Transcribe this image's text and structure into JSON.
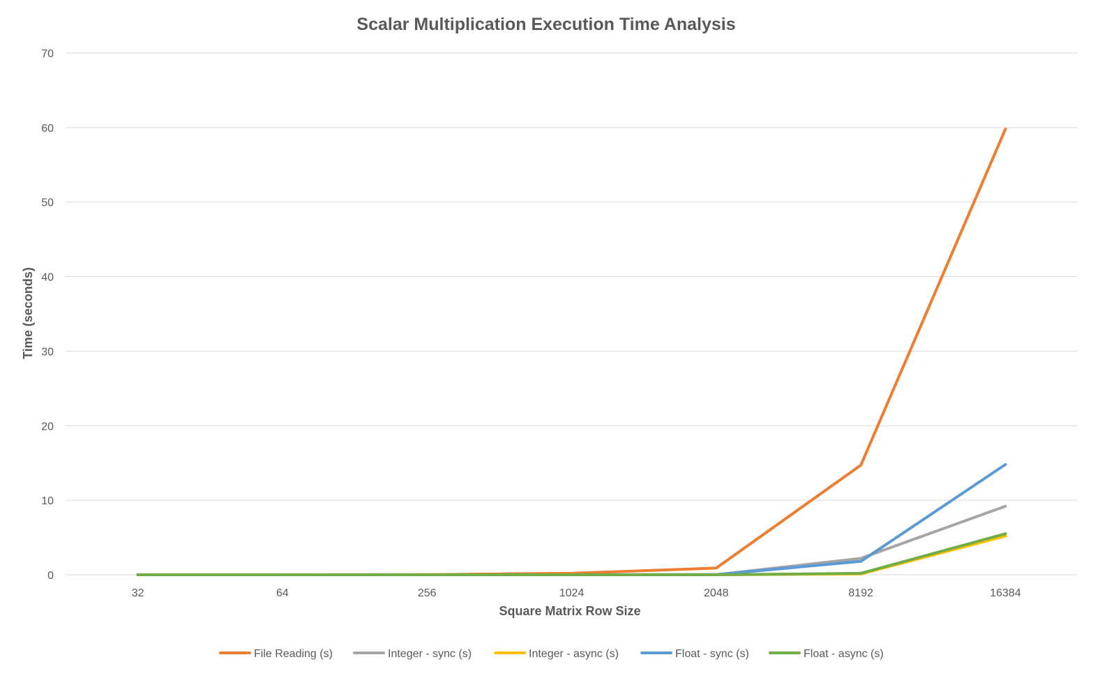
{
  "chart_data": {
    "type": "line",
    "title": "Scalar Multiplication Execution Time Analysis",
    "xlabel": "Square Matrix Row Size",
    "ylabel": "Time (seconds)",
    "categories": [
      "32",
      "64",
      "256",
      "1024",
      "2048",
      "8192",
      "16384"
    ],
    "y_ticks": [
      "0",
      "10",
      "20",
      "30",
      "40",
      "50",
      "60",
      "70"
    ],
    "ylim": [
      0,
      70
    ],
    "grid": true,
    "legend_position": "bottom",
    "series": [
      {
        "name": "File Reading (s)",
        "color": "#ed7d31",
        "values": [
          0.0,
          0.0,
          0.02,
          0.2,
          0.9,
          14.7,
          59.8
        ]
      },
      {
        "name": "Integer - sync (s)",
        "color": "#a5a5a5",
        "values": [
          0.0,
          0.0,
          0.0,
          0.0,
          0.02,
          2.2,
          9.2
        ]
      },
      {
        "name": "Integer - async (s)",
        "color": "#ffc000",
        "values": [
          0.0,
          0.0,
          0.0,
          0.0,
          0.0,
          0.1,
          5.2
        ]
      },
      {
        "name": "Float - sync (s)",
        "color": "#5b9bd5",
        "values": [
          0.0,
          0.0,
          0.0,
          0.0,
          0.02,
          1.8,
          14.8
        ]
      },
      {
        "name": "Float - async (s)",
        "color": "#70ad47",
        "values": [
          0.0,
          0.0,
          0.0,
          0.0,
          0.0,
          0.2,
          5.5
        ]
      }
    ]
  }
}
